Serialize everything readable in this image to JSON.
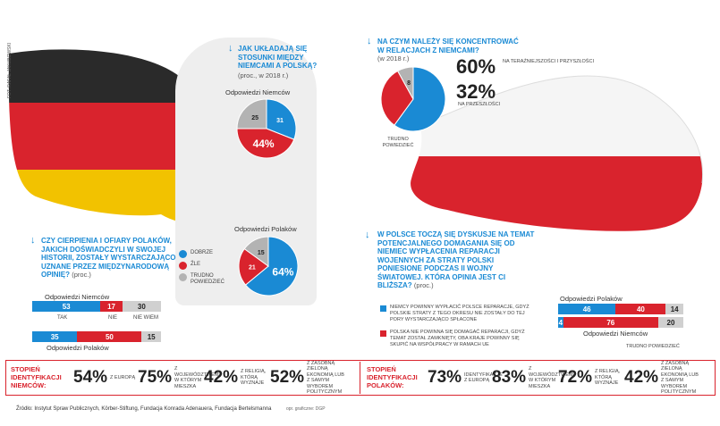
{
  "hands": {
    "credit": "fot. Rafał Jakubowski"
  },
  "q1": {
    "title": "Jak układają się stosunki między Niemcami a Polską?",
    "sub": "(proc., w 2018 r.)",
    "pie_de_label": "Odpowiedzi Niemców",
    "pie_pl_label": "Odpowiedzi Polaków",
    "legend": [
      {
        "label": "Dobrze",
        "color": "#1a8ad4"
      },
      {
        "label": "Źle",
        "color": "#d9232d"
      },
      {
        "label": "Trudno powiedzieć",
        "color": "#b3b3b3"
      }
    ]
  },
  "q2": {
    "title": "Na czym należy się koncentrować w relacjach z Niemcami?",
    "sub": "(w 2018 r.)",
    "v1": "60%",
    "l1": "na teraźniejszości i przyszłości",
    "v2": "32%",
    "l2": "na przeszłości",
    "unsure": "Trudno powiedzieć"
  },
  "q3": {
    "title": "Czy cierpienia i ofiary Polaków, jakich doświadczyli w swojej historii, zostały wystarczająco uznane przez międzynarodową opinię?",
    "sub": "(proc.)",
    "de_label": "Odpowiedzi Niemców",
    "pl_label": "Odpowiedzi Polaków",
    "cat_yes": "Tak",
    "cat_no": "Nie",
    "cat_unsure": "Nie wiem"
  },
  "q4": {
    "title": "W Polsce toczą się dyskusje na temat potencjalnego domagania się od Niemiec wypłacenia reparacji wojennych za straty Polski poniesione podczas II wojny światowej. Która opinia jest ci bliższa?",
    "sub": "(proc.)",
    "opt1": "Niemcy powinny wypłacić Polsce reparacje, gdyż polskie straty z tego okresu nie zostały do tej pory wystarczająco spłacone",
    "opt2": "Polska nie powinna się domagać reparacji, gdyż temat został zamknięty, oba kraje powinny się skupić na współpracy w ramach UE",
    "pl_label": "Odpowiedzi Polaków",
    "de_label": "Odpowiedzi Niemców",
    "unsure": "Trudno powiedzieć"
  },
  "id_de": {
    "title": "Stopień identyfikacji Niemców:",
    "items": [
      {
        "pct": "54%",
        "label": "z Europą"
      },
      {
        "pct": "75%",
        "label": "z województwem, w którym mieszka"
      },
      {
        "pct": "42%",
        "label": "z religią, którą wyznaje"
      },
      {
        "pct": "52%",
        "label": "z zasobną zieloną ekonomią lub z samym wyborem politycznym"
      }
    ]
  },
  "id_pl": {
    "title": "Stopień identyfikacji Polaków:",
    "items": [
      {
        "pct": "73%",
        "label": "Identyfikacje z Europą"
      },
      {
        "pct": "83%",
        "label": "z województwem, w którym mieszka"
      },
      {
        "pct": "72%",
        "label": "z religią, którą wyznaje"
      },
      {
        "pct": "42%",
        "label": "z zasobną zieloną ekonomią lub z samym wyborem politycznym"
      }
    ]
  },
  "footer": {
    "source": "Źródło: Instytut Spraw Publicznych, Körber-Stiftung, Fundacja Konrada Adenauera, Fundacja Bertelsmanna",
    "credit": "opr. graficzne: DGP"
  },
  "chart_data": [
    {
      "type": "pie",
      "title": "Odpowiedzi Niemców",
      "categories": [
        "Dobrze",
        "Źle",
        "Trudno powiedzieć"
      ],
      "values": [
        31,
        44,
        25
      ],
      "colors": [
        "#1a8ad4",
        "#d9232d",
        "#b3b3b3"
      ]
    },
    {
      "type": "pie",
      "title": "Odpowiedzi Polaków",
      "categories": [
        "Dobrze",
        "Źle",
        "Trudno powiedzieć"
      ],
      "values": [
        64,
        21,
        15
      ],
      "colors": [
        "#1a8ad4",
        "#d9232d",
        "#b3b3b3"
      ]
    },
    {
      "type": "pie",
      "categories": [
        "na teraźniejszości i przyszłości",
        "na przeszłości",
        "Trudno powiedzieć"
      ],
      "values": [
        60,
        32,
        8
      ],
      "colors": [
        "#1a8ad4",
        "#d9232d",
        "#b3b3b3"
      ]
    },
    {
      "type": "bar",
      "categories": [
        "Odpowiedzi Niemców",
        "Odpowiedzi Polaków"
      ],
      "series": [
        {
          "name": "Tak",
          "values": [
            53,
            35
          ]
        },
        {
          "name": "Nie",
          "values": [
            17,
            50
          ]
        },
        {
          "name": "Nie wiem",
          "values": [
            30,
            15
          ]
        }
      ]
    },
    {
      "type": "bar",
      "categories": [
        "Odpowiedzi Polaków",
        "Odpowiedzi Niemców"
      ],
      "series": [
        {
          "values": [
            46,
            4
          ]
        },
        {
          "values": [
            40,
            76
          ]
        },
        {
          "values": [
            14,
            20
          ]
        }
      ]
    }
  ]
}
